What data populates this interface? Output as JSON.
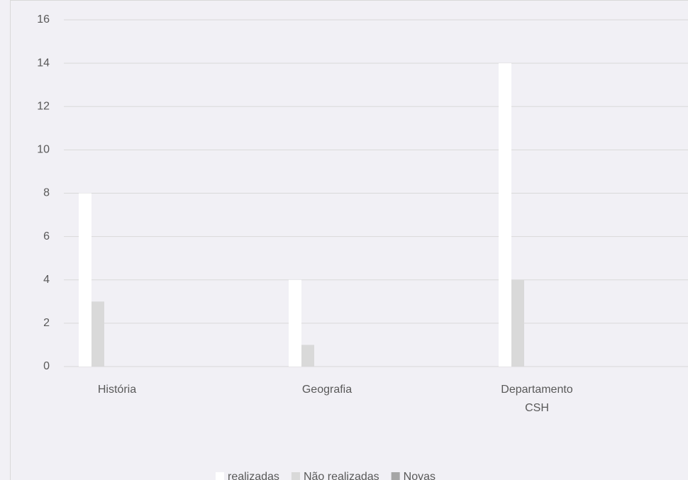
{
  "chart_data": {
    "type": "bar",
    "categories": [
      "História",
      "Geografia",
      "Departamento CSH"
    ],
    "series": [
      {
        "name": "realizadas",
        "color": "#ffffff",
        "values": [
          8,
          4,
          14
        ]
      },
      {
        "name": "Não realizadas",
        "color": "#d9d9d9",
        "values": [
          3,
          1,
          4
        ]
      },
      {
        "name": "Novas",
        "color": "#a6a6a6",
        "values": [
          0,
          0,
          0
        ]
      }
    ],
    "ylim": [
      0,
      16
    ],
    "yticks": [
      0,
      2,
      4,
      6,
      8,
      10,
      12,
      14,
      16
    ],
    "grid": true,
    "legend": "bottom"
  }
}
